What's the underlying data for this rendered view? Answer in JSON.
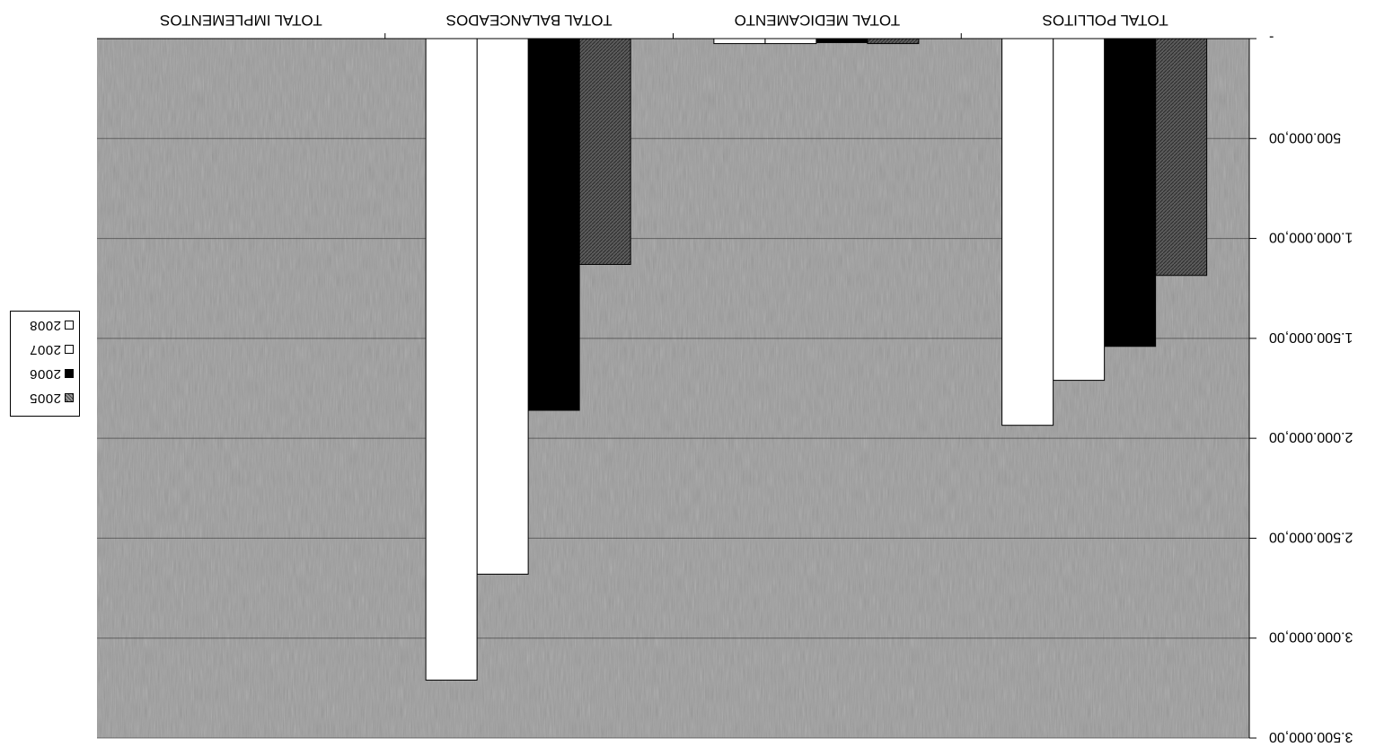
{
  "chart_data": {
    "type": "bar",
    "orientation_note": "rendered rotated 180 degrees as in source",
    "categories": [
      "TOTAL POLLITOS",
      "TOTAL MEDICAMENTO",
      "TOTAL BALANCEADOS",
      "TOTAL IMPLEMENTOS"
    ],
    "series": [
      {
        "name": "2005",
        "values": [
          1185000,
          25000,
          1130000,
          0
        ],
        "color": "#6e6e6e"
      },
      {
        "name": "2006",
        "values": [
          1540000,
          20000,
          1860000,
          0
        ],
        "color": "#000000"
      },
      {
        "name": "2007",
        "values": [
          1710000,
          25000,
          2680000,
          0
        ],
        "color": "#ffffff"
      },
      {
        "name": "2008",
        "values": [
          1935000,
          25000,
          3210000,
          0
        ],
        "color": "#ffffff"
      }
    ],
    "y_ticks": [
      "-",
      "500.000,00",
      "1.000.000,00",
      "1.500.000,00",
      "2.000.000,00",
      "2.500.000,00",
      "3.000.000,00",
      "3.500.000,00"
    ],
    "ylim": [
      0,
      3500000
    ],
    "title": "",
    "xlabel": "",
    "ylabel": "",
    "grid": true,
    "legend_position": "right"
  },
  "legend": {
    "items": [
      {
        "label": "2005",
        "color": "#6e6e6e"
      },
      {
        "label": "2006",
        "color": "#000000"
      },
      {
        "label": "2007",
        "color": "#ffffff"
      },
      {
        "label": "2008",
        "color": "#ffffff"
      }
    ]
  },
  "colors": {
    "plot_background": "#9c9c9c",
    "gridline": "#333333"
  }
}
